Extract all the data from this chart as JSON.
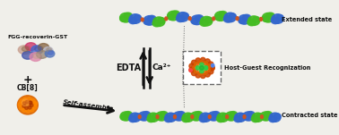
{
  "bg_color": "#f0efea",
  "cb8_label": "CB[8]",
  "plus_label": "+",
  "protein_label": "FGG-recoverin-GST",
  "arrow_label": "Self-assemble",
  "edta_label": "EDTA",
  "ca_label": "Ca²⁺",
  "contracted_label": "Contracted state",
  "hg_label": "Host-Guest Recognization",
  "extended_label": "Extended state",
  "cb8_color": "#cc5500",
  "protein_green": "#44bb22",
  "protein_blue": "#3366cc",
  "linker_orange": "#cc5522",
  "arrow_color": "#111111",
  "text_color": "#111111",
  "box_color": "#666666",
  "fig_width": 3.78,
  "fig_height": 1.51
}
